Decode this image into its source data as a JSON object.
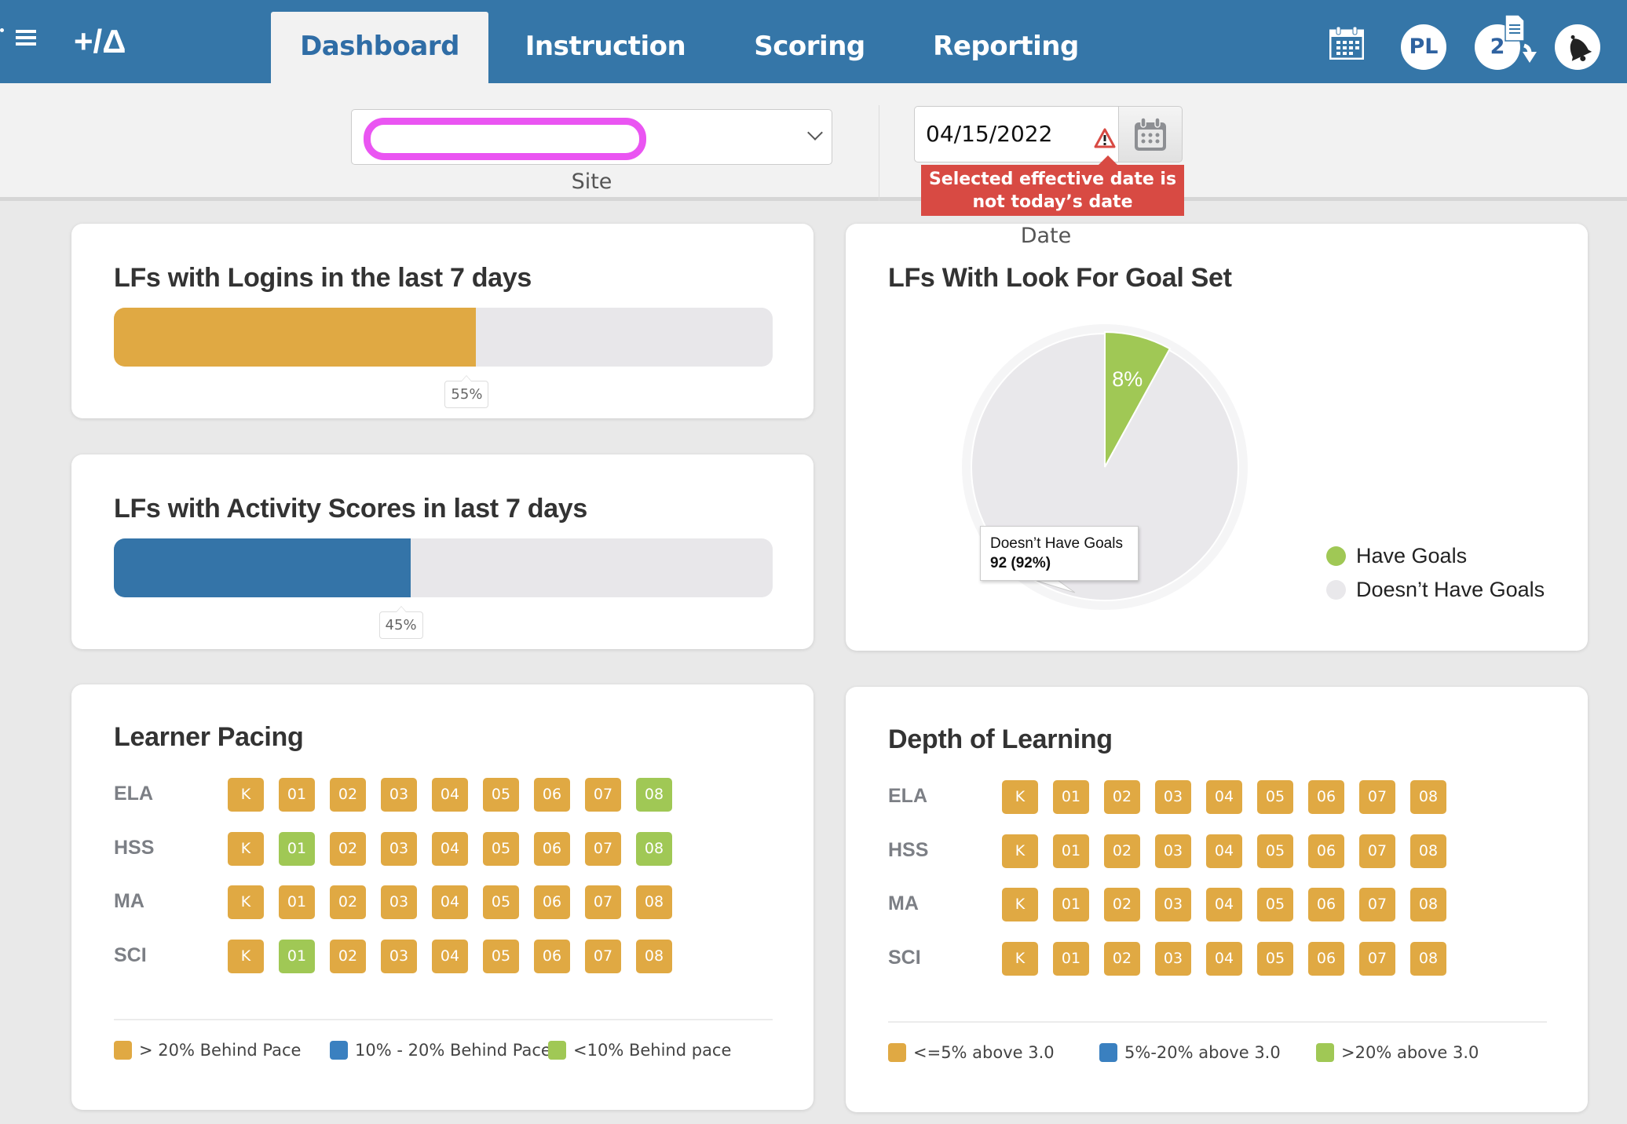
{
  "header": {
    "logo": "+/Δ",
    "tabs": [
      {
        "label": "Dashboard",
        "active": true
      },
      {
        "label": "Instruction",
        "active": false
      },
      {
        "label": "Scoring",
        "active": false
      },
      {
        "label": "Reporting",
        "active": false
      }
    ],
    "user_initials": "PL",
    "downloads_count": "2",
    "icons": [
      "menu-icon",
      "calendar-icon",
      "document-download-icon",
      "bell-icon"
    ]
  },
  "filters": {
    "site": {
      "label": "Site",
      "value": ""
    },
    "date": {
      "label": "Date",
      "value": "04/15/2022",
      "warning": "Selected effective date is not today’s date"
    }
  },
  "colors": {
    "header_bg": "#3576a8",
    "orange": "#e0a943",
    "blue": "#3474a8",
    "legend_blue": "#3a80c0",
    "green": "#a0c855",
    "track": "#e8e7ea",
    "warning_red": "#d84a43"
  },
  "cards": {
    "logins": {
      "title": "LFs with Logins in the last 7 days",
      "percent": 55,
      "percent_label": "55%"
    },
    "activity": {
      "title": "LFs with Activity Scores in last 7 days",
      "percent": 45,
      "percent_label": "45%"
    },
    "goals": {
      "title": "LFs With Look For Goal Set",
      "tooltip": {
        "label": "Doesn’t Have Goals",
        "value": "92 (92%)"
      }
    },
    "pacing": {
      "title": "Learner Pacing",
      "grades": [
        "K",
        "01",
        "02",
        "03",
        "04",
        "05",
        "06",
        "07",
        "08"
      ],
      "rows": [
        {
          "subject": "ELA",
          "statuses": [
            "o",
            "o",
            "o",
            "o",
            "o",
            "o",
            "o",
            "o",
            "g"
          ]
        },
        {
          "subject": "HSS",
          "statuses": [
            "o",
            "g",
            "o",
            "o",
            "o",
            "o",
            "o",
            "o",
            "g"
          ]
        },
        {
          "subject": "MA",
          "statuses": [
            "o",
            "o",
            "o",
            "o",
            "o",
            "o",
            "o",
            "o",
            "o"
          ]
        },
        {
          "subject": "SCI",
          "statuses": [
            "o",
            "g",
            "o",
            "o",
            "o",
            "o",
            "o",
            "o",
            "o"
          ]
        }
      ],
      "legend": [
        {
          "label": "> 20% Behind Pace",
          "key": "o"
        },
        {
          "label": "10% - 20% Behind Pace",
          "key": "b"
        },
        {
          "label": "<10% Behind pace",
          "key": "g"
        }
      ]
    },
    "depth": {
      "title": "Depth of Learning",
      "grades": [
        "K",
        "01",
        "02",
        "03",
        "04",
        "05",
        "06",
        "07",
        "08"
      ],
      "rows": [
        {
          "subject": "ELA",
          "statuses": [
            "o",
            "o",
            "o",
            "o",
            "o",
            "o",
            "o",
            "o",
            "o"
          ]
        },
        {
          "subject": "HSS",
          "statuses": [
            "o",
            "o",
            "o",
            "o",
            "o",
            "o",
            "o",
            "o",
            "o"
          ]
        },
        {
          "subject": "MA",
          "statuses": [
            "o",
            "o",
            "o",
            "o",
            "o",
            "o",
            "o",
            "o",
            "o"
          ]
        },
        {
          "subject": "SCI",
          "statuses": [
            "o",
            "o",
            "o",
            "o",
            "o",
            "o",
            "o",
            "o",
            "o"
          ]
        }
      ],
      "legend": [
        {
          "label": "<=5% above 3.0",
          "key": "o"
        },
        {
          "label": "5%-20% above 3.0",
          "key": "b"
        },
        {
          "label": ">20% above 3.0",
          "key": "g"
        }
      ]
    }
  },
  "chart_data": {
    "type": "pie",
    "title": "LFs With Look For Goal Set",
    "categories": [
      "Have Goals",
      "Doesn’t Have Goals"
    ],
    "values": [
      8,
      92
    ],
    "data_labels": [
      "8%",
      ""
    ],
    "colors": [
      "#a0c855",
      "#e9e8eb"
    ],
    "legend": [
      "Have Goals",
      "Doesn’t Have Goals"
    ],
    "legend_position": "right"
  }
}
